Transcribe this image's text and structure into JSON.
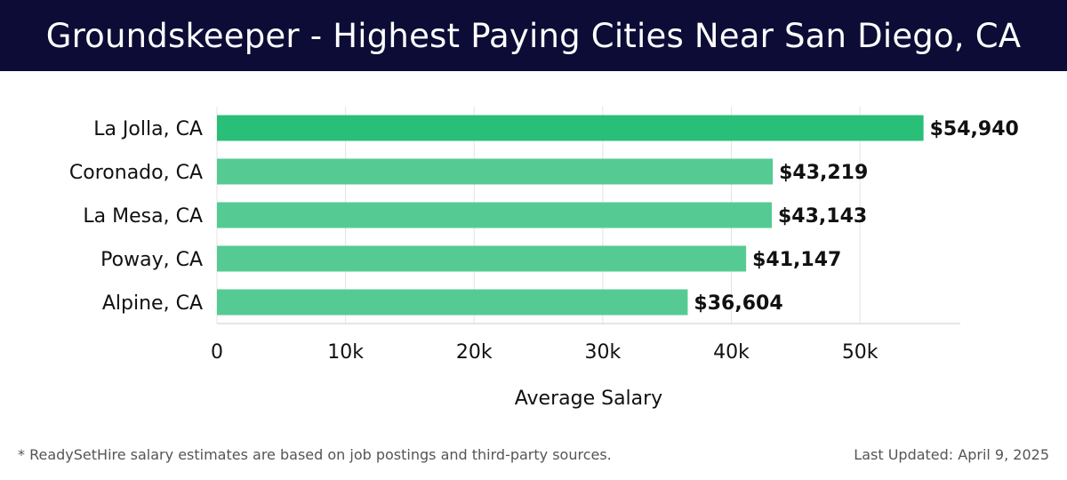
{
  "header": {
    "title": "Groundskeeper - Highest Paying Cities Near San Diego, CA"
  },
  "chart_data": {
    "type": "bar",
    "orientation": "horizontal",
    "categories": [
      "La Jolla, CA",
      "Coronado, CA",
      "La Mesa, CA",
      "Poway, CA",
      "Alpine, CA"
    ],
    "values": [
      54940,
      43219,
      43143,
      41147,
      36604
    ],
    "value_labels": [
      "$54,940",
      "$43,219",
      "$43,143",
      "$41,147",
      "$36,604"
    ],
    "xlabel": "Average Salary",
    "ylabel": "",
    "xlim": [
      0,
      57800
    ],
    "x_ticks": [
      0,
      10000,
      20000,
      30000,
      40000,
      50000
    ],
    "x_tick_labels": [
      "0",
      "10k",
      "20k",
      "30k",
      "40k",
      "50k"
    ],
    "grid": true,
    "colors": {
      "highlight": "#2abf78",
      "bar": "#55cb93",
      "grid": "#e3e3e3",
      "axis": "#cccccc"
    }
  },
  "footer": {
    "note": "* ReadySetHire salary estimates are based on job postings and third-party sources.",
    "updated": "Last Updated: April 9, 2025"
  }
}
